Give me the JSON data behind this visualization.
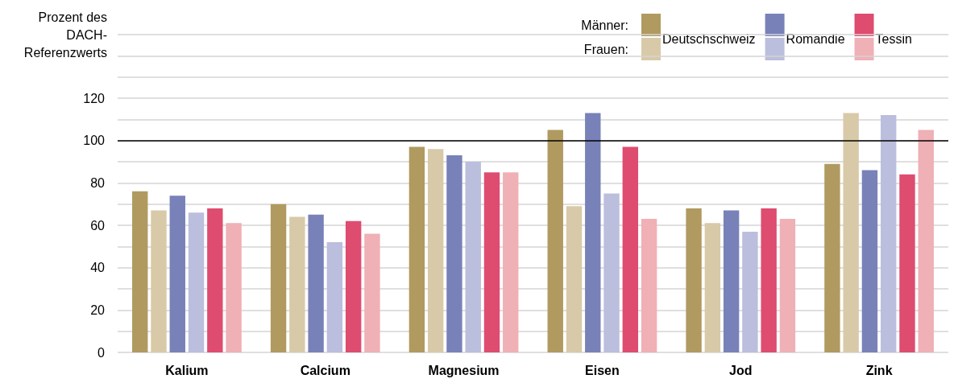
{
  "chart_data": {
    "type": "bar",
    "ylabel": "Prozent des DACH-Referenzwerts",
    "categories": [
      "Kalium",
      "Calcium",
      "Magnesium",
      "Eisen",
      "Jod",
      "Zink"
    ],
    "series": [
      {
        "name": "Deutschschweiz",
        "color": "#b09a60",
        "values": [
          76,
          70,
          97,
          105,
          68,
          89
        ]
      },
      {
        "color": "#d8caa8",
        "values": [
          67,
          64,
          96,
          69,
          61,
          113
        ]
      },
      {
        "name": "Romandie",
        "color": "#7882b8",
        "values": [
          74,
          65,
          93,
          113,
          67,
          86
        ]
      },
      {
        "color": "#bbbedc",
        "values": [
          66,
          52,
          90,
          75,
          57,
          112
        ]
      },
      {
        "name": "Tessin",
        "color": "#de4c70",
        "values": [
          68,
          62,
          85,
          97,
          68,
          84
        ]
      },
      {
        "color": "#efb0b6",
        "values": [
          61,
          56,
          85,
          63,
          63,
          105
        ]
      }
    ],
    "annotations": [
      "Männer:",
      "Frauen:"
    ],
    "ylim": [
      0,
      150
    ],
    "yticks": [
      0,
      {
        "value": 10,
        "label": null
      },
      20,
      {
        "value": 30,
        "label": null
      },
      40,
      {
        "value": 50,
        "label": null
      },
      60,
      {
        "value": 70,
        "label": null
      },
      80,
      {
        "value": 90,
        "label": null
      },
      100,
      {
        "value": 110,
        "label": null
      },
      120,
      {
        "value": 130,
        "label": null
      },
      {
        "value": 140,
        "label": null
      },
      {
        "value": 150,
        "label": null
      }
    ],
    "grid": "y",
    "legend": "top right",
    "ref_lines": [
      {
        "axis": "y",
        "value": 100,
        "color": "#000000"
      }
    ]
  }
}
